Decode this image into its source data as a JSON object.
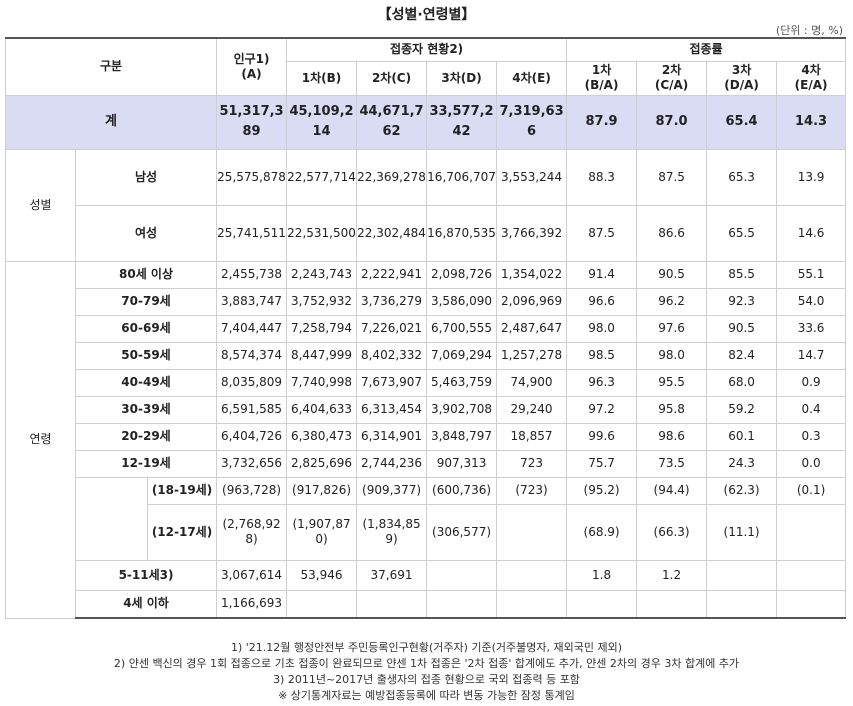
{
  "title": "【성별·연령별】",
  "unit": "(단위 : 명, %)",
  "header": {
    "category": "구분",
    "population": "인구1)",
    "population_sub": "(A)",
    "vaccinated": "접종자 현황2)",
    "rate": "접종률",
    "dose1": "1차(B)",
    "dose2": "2차(C)",
    "dose3": "3차(D)",
    "dose4": "4차(E)",
    "rate1": "1차",
    "rate1_sub": "(B/A)",
    "rate2": "2차",
    "rate2_sub": "(C/A)",
    "rate3": "3차",
    "rate3_sub": "(D/A)",
    "rate4": "4차",
    "rate4_sub": "(E/A)"
  },
  "total": {
    "label": "계",
    "population": "51,317,389",
    "d1": "45,109,214",
    "d2": "44,671,762",
    "d3": "33,577,242",
    "d4": "7,319,636",
    "r1": "87.9",
    "r2": "87.0",
    "r3": "65.4",
    "r4": "14.3"
  },
  "sex": {
    "group_label": "성별",
    "rows": [
      {
        "label": "남성",
        "population": "25,575,878",
        "d1": "22,577,714",
        "d2": "22,369,278",
        "d3": "16,706,707",
        "d4": "3,553,244",
        "r1": "88.3",
        "r2": "87.5",
        "r3": "65.3",
        "r4": "13.9"
      },
      {
        "label": "여성",
        "population": "25,741,511",
        "d1": "22,531,500",
        "d2": "22,302,484",
        "d3": "16,870,535",
        "d4": "3,766,392",
        "r1": "87.5",
        "r2": "86.6",
        "r3": "65.5",
        "r4": "14.6"
      }
    ]
  },
  "age": {
    "group_label": "연령",
    "rows": [
      {
        "label": "80세 이상",
        "population": "2,455,738",
        "d1": "2,243,743",
        "d2": "2,222,941",
        "d3": "2,098,726",
        "d4": "1,354,022",
        "r1": "91.4",
        "r2": "90.5",
        "r3": "85.5",
        "r4": "55.1"
      },
      {
        "label": "70-79세",
        "population": "3,883,747",
        "d1": "3,752,932",
        "d2": "3,736,279",
        "d3": "3,586,090",
        "d4": "2,096,969",
        "r1": "96.6",
        "r2": "96.2",
        "r3": "92.3",
        "r4": "54.0"
      },
      {
        "label": "60-69세",
        "population": "7,404,447",
        "d1": "7,258,794",
        "d2": "7,226,021",
        "d3": "6,700,555",
        "d4": "2,487,647",
        "r1": "98.0",
        "r2": "97.6",
        "r3": "90.5",
        "r4": "33.6"
      },
      {
        "label": "50-59세",
        "population": "8,574,374",
        "d1": "8,447,999",
        "d2": "8,402,332",
        "d3": "7,069,294",
        "d4": "1,257,278",
        "r1": "98.5",
        "r2": "98.0",
        "r3": "82.4",
        "r4": "14.7"
      },
      {
        "label": "40-49세",
        "population": "8,035,809",
        "d1": "7,740,998",
        "d2": "7,673,907",
        "d3": "5,463,759",
        "d4": "74,900",
        "r1": "96.3",
        "r2": "95.5",
        "r3": "68.0",
        "r4": "0.9"
      },
      {
        "label": "30-39세",
        "population": "6,591,585",
        "d1": "6,404,633",
        "d2": "6,313,454",
        "d3": "3,902,708",
        "d4": "29,240",
        "r1": "97.2",
        "r2": "95.8",
        "r3": "59.2",
        "r4": "0.4"
      },
      {
        "label": "20-29세",
        "population": "6,404,726",
        "d1": "6,380,473",
        "d2": "6,314,901",
        "d3": "3,848,797",
        "d4": "18,857",
        "r1": "99.6",
        "r2": "98.6",
        "r3": "60.1",
        "r4": "0.3"
      },
      {
        "label": "12-19세",
        "population": "3,732,656",
        "d1": "2,825,696",
        "d2": "2,744,236",
        "d3": "907,313",
        "d4": "723",
        "r1": "75.7",
        "r2": "73.5",
        "r3": "24.3",
        "r4": "0.0"
      }
    ],
    "sub": {
      "label1": "(18-19세)",
      "label2": "(12-17세)",
      "population1": "(963,728)",
      "population2": "(2,768,928)",
      "d1_1": "(917,826)",
      "d1_2": "(1,907,870)",
      "d2_1": "(909,377)",
      "d2_2": "(1,834,859)",
      "d3_1": "(600,736)",
      "d3_2": "(306,577)",
      "d4_1": "(723)",
      "r1_1": "(95.2)",
      "r1_2": "(68.9)",
      "r2_1": "(94.4)",
      "r2_2": "(66.3)",
      "r3_1": "(62.3)",
      "r3_2": "(11.1)",
      "r4_1": "(0.1)"
    },
    "row_5_11": {
      "label": "5-11세3)",
      "population": "3,067,614",
      "d1": "53,946",
      "d2": "37,691",
      "r1": "1.8",
      "r2": "1.2"
    },
    "row_under4": {
      "label": "4세 이하",
      "population": "1,166,693"
    }
  },
  "footnotes": [
    "1) '21.12월 행정안전부 주민등록인구현황(거주자) 기준(거주불명자, 재외국민 제외)",
    "2) 얀센 백신의 경우 1회 접종으로 기초 접종이 완료되므로 얀센 1차 접종은 '2차 접종' 합계에도 추가, 얀센 2차의 경우 3차 합계에 추가",
    "3) 2011년~2017년 출생자의 접종 현황으로 국외 접종력 등 포함",
    "※ 상기통계자료는 예방접종등록에 따라 변동 가능한 잠정 통계임"
  ]
}
